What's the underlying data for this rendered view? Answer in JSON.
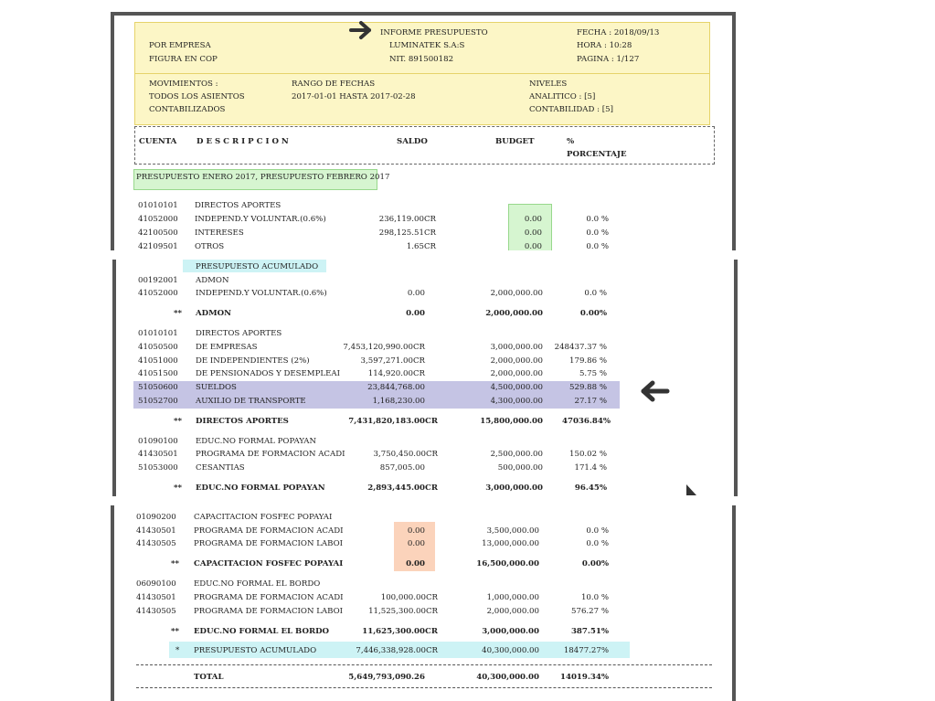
{
  "header": {
    "title": "INFORME PRESUPUESTO",
    "company": "LUMINATEK S.A:S",
    "nit": "NIT. 891500182",
    "por_empresa": "POR EMPRESA",
    "figura": "FIGURA EN COP",
    "fecha": "FECHA : 2018/09/13",
    "hora": "HORA : 10:28",
    "pagina": "PAGINA : 1/127"
  },
  "filters": {
    "movimientos_label": "MOVIMIENTOS :",
    "movimientos_value1": "TODOS LOS ASIENTOS",
    "movimientos_value2": "CONTABILIZADOS",
    "rango_label": "RANGO DE FECHAS",
    "rango_value": "2017-01-01 HASTA 2017-02-28",
    "niveles_label": "NIVELES",
    "analitico": "ANALITICO : [5]",
    "contabilidad": "CONTABILIDAD : [5]"
  },
  "columns": {
    "cuenta": "CUENTA",
    "descripcion": "D E S C R I P C I O N",
    "saldo": "SALDO",
    "budget": "BUDGET",
    "pct_symbol": "%",
    "porcentaje": "PORCENTAJE"
  },
  "budget_tag": "PRESUPUESTO ENERO 2017, PRESUPUESTO FEBRERO 2017",
  "section1": {
    "group": {
      "cuenta": "01010101",
      "desc": "DIRECTOS APORTES"
    },
    "rows": [
      {
        "cuenta": "41052000",
        "desc": "INDEPEND.Y VOLUNTAR.(0.6%)",
        "saldo": "236,119.00CR",
        "budget": "0.00",
        "pct": "0.0 %"
      },
      {
        "cuenta": "42100500",
        "desc": "INTERESES",
        "saldo": "298,125.51CR",
        "budget": "0.00",
        "pct": "0.0 %"
      },
      {
        "cuenta": "42109501",
        "desc": "OTROS",
        "saldo": "1.65CR",
        "budget": "0.00",
        "pct": "0.0 %"
      }
    ]
  },
  "section2": {
    "tag": "PRESUPUESTO ACUMULADO",
    "admon_group": {
      "cuenta": "00192001",
      "desc": "ADMON"
    },
    "admon_rows": [
      {
        "cuenta": "41052000",
        "desc": "INDEPEND.Y VOLUNTAR.(0.6%)",
        "saldo": "0.00",
        "budget": "2,000,000.00",
        "pct": "0.0 %"
      }
    ],
    "admon_total": {
      "stars": "**",
      "desc": "ADMON",
      "saldo": "0.00",
      "budget": "2,000,000.00",
      "pct": "0.00%"
    },
    "directos_group": {
      "cuenta": "01010101",
      "desc": "DIRECTOS APORTES"
    },
    "directos_rows": [
      {
        "cuenta": "41050500",
        "desc": "DE EMPRESAS",
        "saldo": "7,453,120,990.00CR",
        "budget": "3,000,000.00",
        "pct": "248437.37 %"
      },
      {
        "cuenta": "41051000",
        "desc": "DE INDEPENDIENTES (2%)",
        "saldo": "3,597,271.00CR",
        "budget": "2,000,000.00",
        "pct": "179.86 %"
      },
      {
        "cuenta": "41051500",
        "desc": "DE PENSIONADOS Y DESEMPLEAI",
        "saldo": "114,920.00CR",
        "budget": "2,000,000.00",
        "pct": "5.75 %"
      },
      {
        "cuenta": "51050600",
        "desc": "SUELDOS",
        "saldo": "23,844,768.00",
        "budget": "4,500,000.00",
        "pct": "529.88 %"
      },
      {
        "cuenta": "51052700",
        "desc": "AUXILIO DE TRANSPORTE",
        "saldo": "1,168,230.00",
        "budget": "4,300,000.00",
        "pct": "27.17 %"
      }
    ],
    "directos_total": {
      "stars": "**",
      "desc": "DIRECTOS APORTES",
      "saldo": "7,431,820,183.00CR",
      "budget": "15,800,000.00",
      "pct": "47036.84%"
    },
    "educ_group": {
      "cuenta": "01090100",
      "desc": "EDUC.NO FORMAL POPAYAN"
    },
    "educ_rows": [
      {
        "cuenta": "41430501",
        "desc": "PROGRAMA DE FORMACION ACADI",
        "saldo": "3,750,450.00CR",
        "budget": "2,500,000.00",
        "pct": "150.02 %"
      },
      {
        "cuenta": "51053000",
        "desc": "CESANTIAS",
        "saldo": "857,005.00",
        "budget": "500,000.00",
        "pct": "171.4 %"
      }
    ],
    "educ_total": {
      "stars": "**",
      "desc": "EDUC.NO FORMAL POPAYAN",
      "saldo": "2,893,445.00CR",
      "budget": "3,000,000.00",
      "pct": "96.45%"
    }
  },
  "section3": {
    "cap_group": {
      "cuenta": "01090200",
      "desc": "CAPACITACION FOSFEC POPAYAI"
    },
    "cap_rows": [
      {
        "cuenta": "41430501",
        "desc": "PROGRAMA DE FORMACION ACADI",
        "saldo": "0.00",
        "budget": "3,500,000.00",
        "pct": "0.0 %"
      },
      {
        "cuenta": "41430505",
        "desc": "PROGRAMA DE FORMACION LABOI",
        "saldo": "0.00",
        "budget": "13,000,000.00",
        "pct": "0.0 %"
      }
    ],
    "cap_total": {
      "stars": "**",
      "desc": "CAPACITACION FOSFEC POPAYAI",
      "saldo": "0.00",
      "budget": "16,500,000.00",
      "pct": "0.00%"
    },
    "bordo_group": {
      "cuenta": "06090100",
      "desc": "EDUC.NO FORMAL EL BORDO"
    },
    "bordo_rows": [
      {
        "cuenta": "41430501",
        "desc": "PROGRAMA DE FORMACION ACADI",
        "saldo": "100,000.00CR",
        "budget": "1,000,000.00",
        "pct": "10.0 %"
      },
      {
        "cuenta": "41430505",
        "desc": "PROGRAMA DE FORMACION LABOI",
        "saldo": "11,525,300.00CR",
        "budget": "2,000,000.00",
        "pct": "576.27 %"
      }
    ],
    "bordo_total": {
      "stars": "**",
      "desc": "EDUC.NO FORMAL EL BORDO",
      "saldo": "11,625,300.00CR",
      "budget": "3,000,000.00",
      "pct": "387.51%"
    },
    "acumulado": {
      "stars": "*",
      "desc": "PRESUPUESTO ACUMULADO",
      "saldo": "7,446,338,928.00CR",
      "budget": "40,300,000.00",
      "pct": "18477.27%"
    },
    "total": {
      "desc": "TOTAL",
      "saldo": "5,649,793,090.26",
      "budget": "40,300,000.00",
      "pct": "14019.34%"
    }
  },
  "colors": {
    "yellow": "#fcf6c6",
    "green": "#d6f5d0",
    "cyan": "#cdf3f5",
    "purple": "#c5c4e4",
    "peach": "#fbd3bb",
    "arrow": "#333333"
  },
  "icons": [
    "arrow-right-icon",
    "arrow-left-icon",
    "mouse-cursor-icon"
  ]
}
